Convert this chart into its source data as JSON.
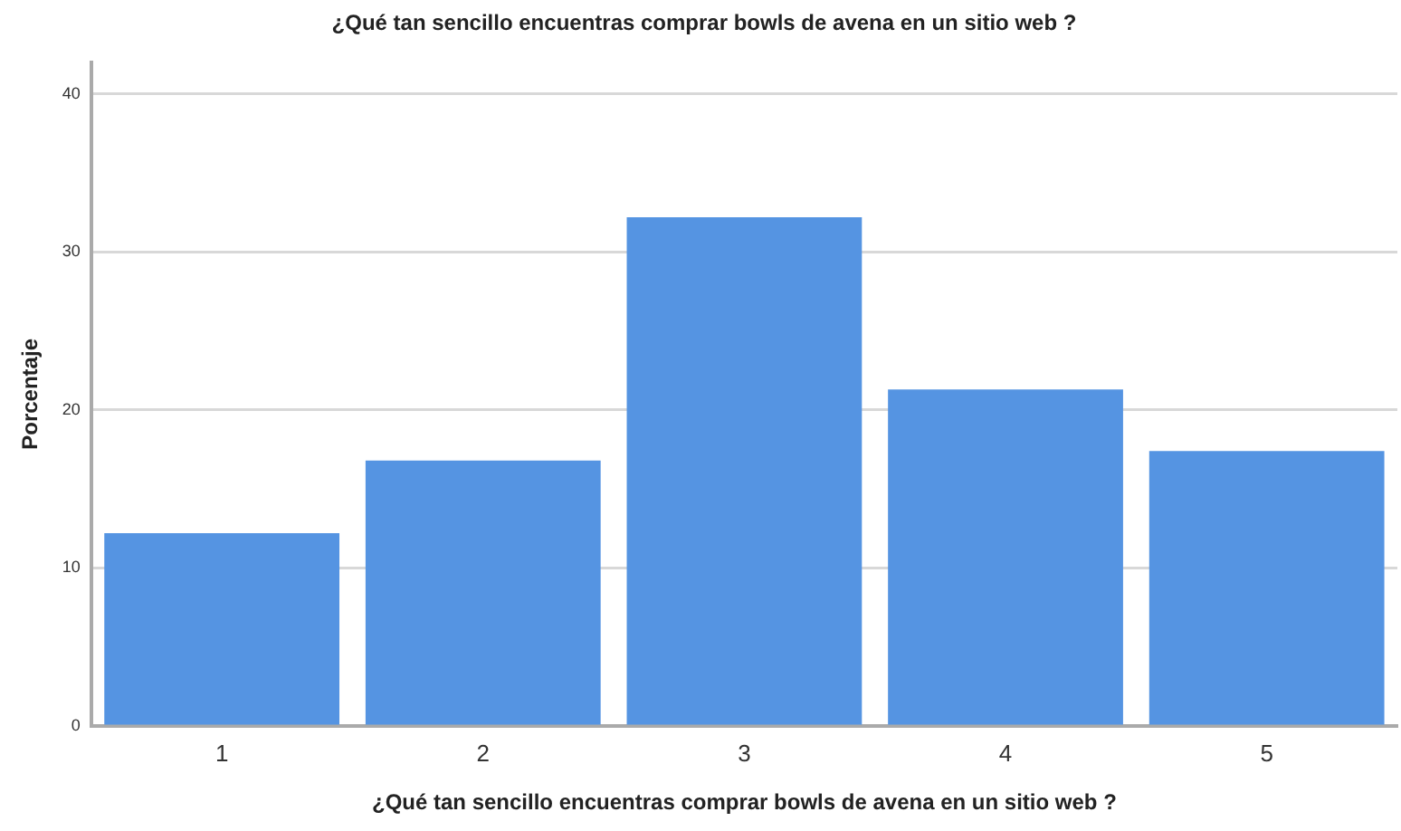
{
  "chart_data": {
    "type": "bar",
    "title": "¿Qué tan sencillo encuentras comprar bowls de avena en un sitio web ?",
    "xlabel": "¿Qué tan sencillo encuentras comprar bowls de avena en un sitio web ?",
    "ylabel": "Porcentaje",
    "categories": [
      "1",
      "2",
      "3",
      "4",
      "5"
    ],
    "values": [
      12.2,
      16.8,
      32.2,
      21.3,
      17.4
    ],
    "color": "#5594e2",
    "ylim": [
      0,
      42
    ],
    "yticks": [
      0,
      10,
      20,
      30,
      40
    ],
    "grid": "y"
  }
}
